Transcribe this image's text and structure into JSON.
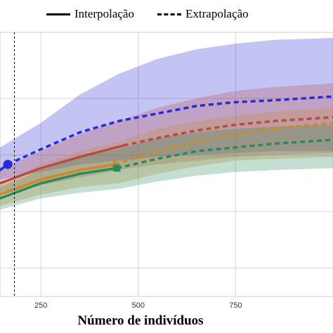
{
  "legend": {
    "interp_label": "Interpolação",
    "extrap_label": "Extrapolação"
  },
  "chart_data": {
    "type": "line",
    "xlabel": "Número de indivíduos",
    "ylabel": "",
    "xlim": [
      145,
      1000
    ],
    "ylim": [
      0,
      140
    ],
    "x_ticks": [
      250,
      500,
      750
    ],
    "y_gridlines": [
      15,
      45,
      75,
      105
    ],
    "reference_line_x": 182,
    "grid": true,
    "legend_position": "top",
    "series": [
      {
        "color": "#2a2ad8",
        "observed_x": 165,
        "interpolation": {
          "x": [
            145,
            165
          ],
          "y": [
            67,
            70
          ]
        },
        "extrapolation": {
          "x": [
            165,
            250,
            350,
            450,
            550,
            650,
            750,
            850,
            1000
          ],
          "y": [
            70,
            78,
            87,
            93,
            97,
            101,
            103,
            104,
            106
          ]
        },
        "band_upper": [
          79,
          92,
          107,
          118,
          126,
          131,
          134,
          136,
          137
        ],
        "band_lower": [
          62,
          66,
          70,
          72,
          74,
          75,
          76,
          77,
          77
        ]
      },
      {
        "color": "#b84a4a",
        "observed_x": 462,
        "interpolation": {
          "x": [
            145,
            250,
            350,
            462
          ],
          "y": [
            60,
            68,
            74,
            80
          ]
        },
        "extrapolation": {
          "x": [
            462,
            550,
            650,
            750,
            850,
            1000
          ],
          "y": [
            80,
            84,
            88,
            91,
            93,
            95
          ]
        },
        "band_upper": [
          67,
          77,
          86,
          93,
          100,
          105,
          109,
          111,
          113
        ],
        "band_lower": [
          54,
          59,
          63,
          67,
          70,
          72,
          74,
          75,
          76
        ]
      },
      {
        "color": "#c88a2a",
        "observed_x": 440,
        "interpolation": {
          "x": [
            145,
            250,
            350,
            440
          ],
          "y": [
            54,
            62,
            67,
            70
          ]
        },
        "extrapolation": {
          "x": [
            440,
            550,
            650,
            750,
            850,
            1000
          ],
          "y": [
            70,
            77,
            82,
            86,
            89,
            92
          ]
        },
        "band_upper": [
          60,
          70,
          77,
          82,
          89,
          93,
          96,
          98,
          100
        ],
        "band_lower": [
          48,
          54,
          58,
          60,
          65,
          69,
          72,
          73,
          74
        ]
      },
      {
        "color": "#2a8a5a",
        "observed_x": 445,
        "interpolation": {
          "x": [
            145,
            250,
            350,
            445
          ],
          "y": [
            52,
            60,
            65,
            68
          ]
        },
        "extrapolation": {
          "x": [
            445,
            550,
            650,
            750,
            850,
            1000
          ],
          "y": [
            68,
            73,
            77,
            79,
            81,
            83
          ]
        },
        "band_upper": [
          58,
          67,
          74,
          78,
          84,
          87,
          89,
          90,
          91
        ],
        "band_lower": [
          46,
          52,
          55,
          57,
          61,
          64,
          66,
          67,
          68
        ]
      }
    ],
    "band_x": [
      145,
      250,
      350,
      450,
      550,
      650,
      750,
      850,
      1000
    ]
  }
}
